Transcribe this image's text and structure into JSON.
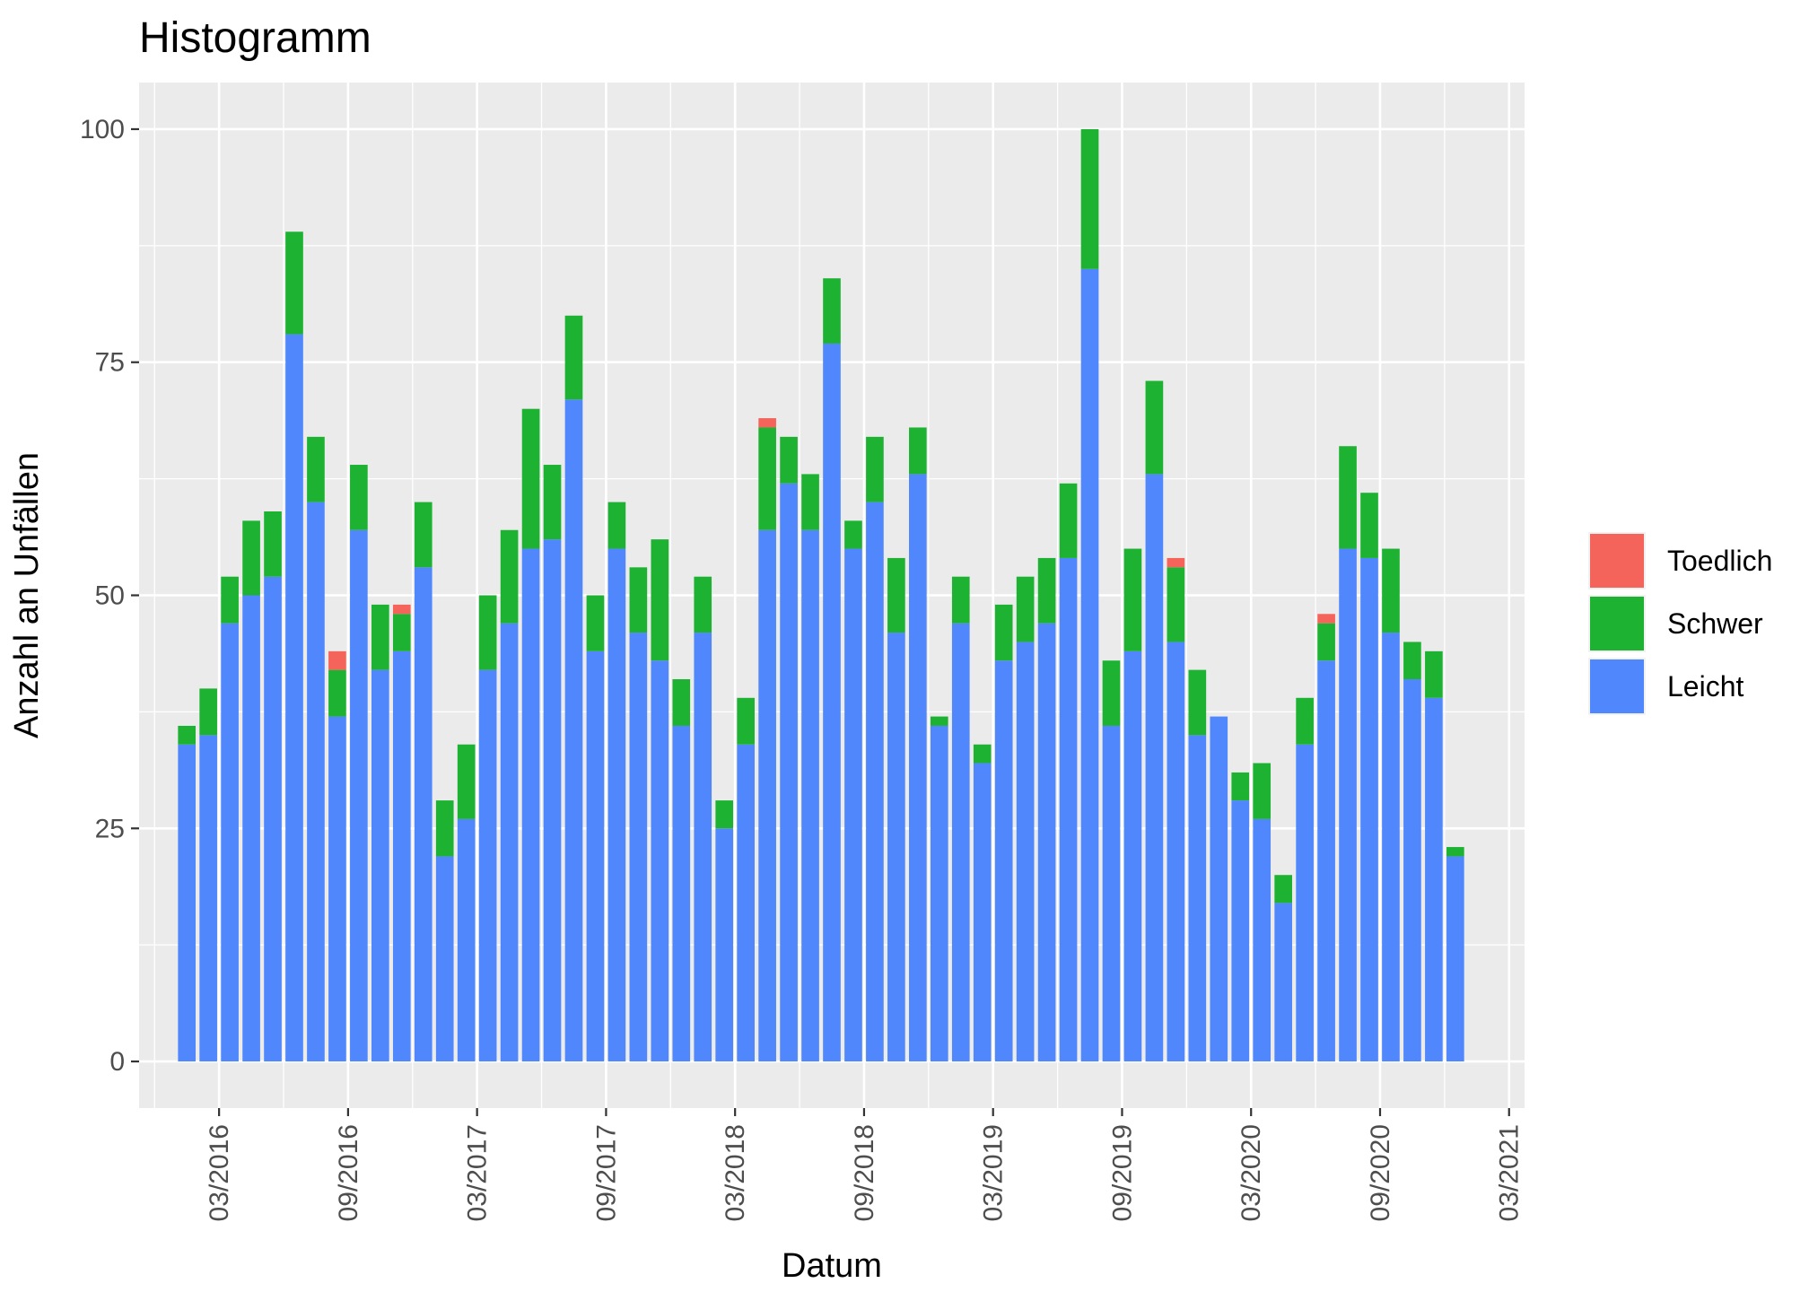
{
  "chart_data": {
    "type": "bar",
    "stacked": true,
    "title": "Histogramm",
    "xlabel": "Datum",
    "ylabel": "Anzahl an Unfällen",
    "ylim": [
      -5,
      105
    ],
    "y_ticks": [
      0,
      25,
      50,
      75,
      100
    ],
    "x_ticks": [
      "03/2016",
      "09/2016",
      "03/2017",
      "09/2017",
      "03/2018",
      "09/2018",
      "03/2019",
      "09/2019",
      "03/2020",
      "09/2020",
      "03/2021"
    ],
    "x_tick_dates": [
      "2016-03",
      "2016-09",
      "2017-03",
      "2017-09",
      "2018-03",
      "2018-09",
      "2019-03",
      "2019-09",
      "2020-03",
      "2020-09",
      "2021-03"
    ],
    "x_range": [
      "2015-12",
      "2021-03"
    ],
    "grid": true,
    "legend_position": "right",
    "categories": [
      "2016-01",
      "2016-02",
      "2016-03",
      "2016-04",
      "2016-05",
      "2016-06",
      "2016-07",
      "2016-08",
      "2016-09",
      "2016-10",
      "2016-11",
      "2016-12",
      "2017-01",
      "2017-02",
      "2017-03",
      "2017-04",
      "2017-05",
      "2017-06",
      "2017-07",
      "2017-08",
      "2017-09",
      "2017-10",
      "2017-11",
      "2017-12",
      "2018-01",
      "2018-02",
      "2018-03",
      "2018-04",
      "2018-05",
      "2018-06",
      "2018-07",
      "2018-08",
      "2018-09",
      "2018-10",
      "2018-11",
      "2018-12",
      "2019-01",
      "2019-02",
      "2019-03",
      "2019-04",
      "2019-05",
      "2019-06",
      "2019-07",
      "2019-08",
      "2019-09",
      "2019-10",
      "2019-11",
      "2019-12",
      "2020-01",
      "2020-02",
      "2020-03",
      "2020-04",
      "2020-05",
      "2020-06",
      "2020-07",
      "2020-08",
      "2020-09",
      "2020-10",
      "2020-11",
      "2020-12"
    ],
    "series": [
      {
        "name": "Leicht",
        "color": "#5087fc",
        "values": [
          34,
          35,
          47,
          50,
          52,
          78,
          60,
          37,
          57,
          42,
          44,
          53,
          22,
          26,
          42,
          47,
          55,
          56,
          71,
          44,
          55,
          46,
          43,
          36,
          46,
          25,
          34,
          57,
          62,
          57,
          77,
          55,
          60,
          46,
          63,
          36,
          47,
          32,
          43,
          45,
          47,
          54,
          85,
          36,
          44,
          63,
          45,
          35,
          37,
          28,
          26,
          17,
          34,
          43,
          55,
          54,
          46,
          41,
          39,
          22
        ]
      },
      {
        "name": "Schwer",
        "color": "#1eb233",
        "values": [
          2,
          5,
          5,
          8,
          7,
          11,
          7,
          5,
          7,
          7,
          4,
          7,
          6,
          8,
          8,
          10,
          15,
          8,
          9,
          6,
          5,
          7,
          13,
          5,
          6,
          3,
          5,
          11,
          5,
          6,
          7,
          3,
          7,
          8,
          5,
          1,
          5,
          2,
          6,
          7,
          7,
          8,
          15,
          7,
          11,
          10,
          8,
          7,
          0,
          3,
          6,
          3,
          5,
          4,
          11,
          7,
          9,
          4,
          5,
          1
        ]
      },
      {
        "name": "Toedlich",
        "color": "#f5645a",
        "values": [
          0,
          0,
          0,
          0,
          0,
          0,
          0,
          2,
          0,
          0,
          1,
          0,
          0,
          0,
          0,
          0,
          0,
          0,
          0,
          0,
          0,
          0,
          0,
          0,
          0,
          0,
          0,
          1,
          0,
          0,
          0,
          0,
          0,
          0,
          0,
          0,
          0,
          0,
          0,
          0,
          0,
          0,
          0,
          0,
          0,
          0,
          1,
          0,
          0,
          0,
          0,
          0,
          0,
          1,
          0,
          0,
          0,
          0,
          0,
          0
        ]
      }
    ],
    "legend": [
      "Toedlich",
      "Schwer",
      "Leicht"
    ]
  }
}
